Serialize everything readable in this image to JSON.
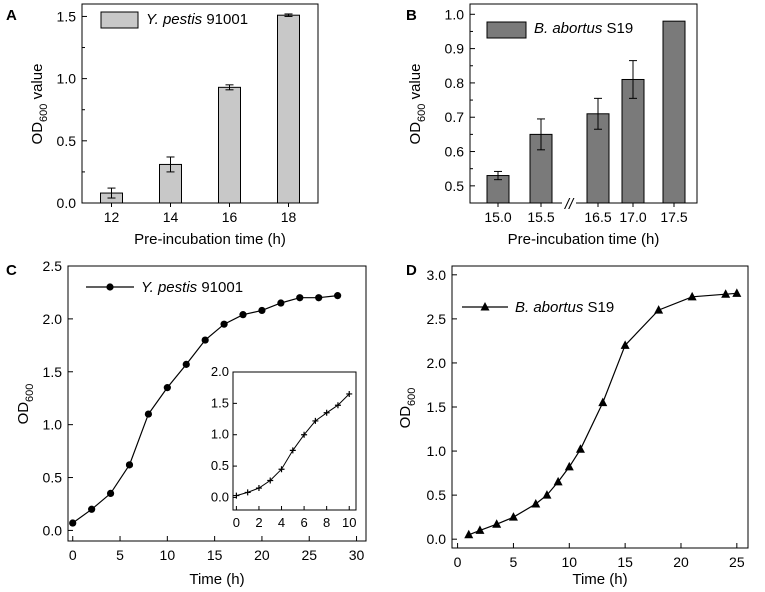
{
  "chart_data": [
    {
      "panel": "A",
      "type": "bar",
      "series_name": "Y. pestis",
      "series_strain": "91001",
      "categories": [
        "12",
        "14",
        "16",
        "18"
      ],
      "values": [
        0.08,
        0.31,
        0.93,
        1.51
      ],
      "errors": [
        0.04,
        0.06,
        0.02,
        0.01
      ],
      "color": "#c8c8c8",
      "xlabel": "Pre-incubation time (h)",
      "ylabel_main": "OD",
      "ylabel_sub": "600",
      "ylabel_suffix": " value",
      "ylim": [
        0,
        1.6
      ],
      "yticks": [
        "0.0",
        "0.5",
        "1.0",
        "1.5"
      ]
    },
    {
      "panel": "B",
      "type": "bar",
      "series_name": "B. abortus",
      "series_strain": "S19",
      "categories": [
        "15.0",
        "15.5",
        "16.5",
        "17.0",
        "17.5"
      ],
      "values": [
        0.53,
        0.65,
        0.71,
        0.81,
        0.98
      ],
      "errors": [
        0.012,
        0.045,
        0.045,
        0.055,
        0.0
      ],
      "axis_break_between": [
        "15.5",
        "16.5"
      ],
      "break_mark": "//",
      "color": "#7a7a7a",
      "xlabel": "Pre-incubation time (h)",
      "ylabel_main": "OD",
      "ylabel_sub": "600",
      "ylabel_suffix": " value",
      "ylim": [
        0.45,
        1.03
      ],
      "yticks": [
        "0.5",
        "0.6",
        "0.7",
        "0.8",
        "0.9",
        "1.0"
      ]
    },
    {
      "panel": "C",
      "type": "line",
      "series_name": "Y. pestis",
      "series_strain": "91001",
      "marker": "circle",
      "x": [
        0,
        2,
        4,
        6,
        8,
        10,
        12,
        14,
        16,
        18,
        20,
        22,
        24,
        26,
        28
      ],
      "y": [
        0.07,
        0.2,
        0.35,
        0.62,
        1.1,
        1.35,
        1.57,
        1.8,
        1.95,
        2.04,
        2.08,
        2.15,
        2.2,
        2.2,
        2.22
      ],
      "xlabel": "Time (h)",
      "ylabel_main": "OD",
      "ylabel_sub": "600",
      "xlim": [
        -0.5,
        31
      ],
      "ylim": [
        -0.1,
        2.5
      ],
      "xticks": [
        "0",
        "5",
        "10",
        "15",
        "20",
        "25",
        "30"
      ],
      "yticks": [
        "0.0",
        "0.5",
        "1.0",
        "1.5",
        "2.0",
        "2.5"
      ],
      "inset": {
        "type": "line",
        "marker": "cross",
        "x": [
          0,
          1,
          2,
          3,
          4,
          5,
          6,
          7,
          8,
          9,
          10
        ],
        "y": [
          0.03,
          0.08,
          0.15,
          0.27,
          0.45,
          0.75,
          1.0,
          1.22,
          1.35,
          1.47,
          1.65
        ],
        "xlim": [
          -0.3,
          10.6
        ],
        "ylim": [
          -0.2,
          2.0
        ],
        "xticks": [
          "0",
          "2",
          "4",
          "6",
          "8",
          "10"
        ],
        "yticks": [
          "0.0",
          "0.5",
          "1.0",
          "1.5",
          "2.0"
        ]
      }
    },
    {
      "panel": "D",
      "type": "line",
      "series_name": "B. abortus",
      "series_strain": "S19",
      "marker": "triangle",
      "x": [
        1,
        2,
        3.5,
        5,
        7,
        8,
        9,
        10,
        11,
        13,
        15,
        18,
        21,
        24,
        25
      ],
      "y": [
        0.05,
        0.1,
        0.17,
        0.25,
        0.4,
        0.5,
        0.65,
        0.82,
        1.02,
        1.55,
        2.2,
        2.6,
        2.75,
        2.78,
        2.79
      ],
      "xlabel": "Time (h)",
      "ylabel_main": "OD",
      "ylabel_sub": "600",
      "xlim": [
        -0.5,
        26
      ],
      "ylim": [
        -0.1,
        3.1
      ],
      "xticks": [
        "0",
        "5",
        "10",
        "15",
        "20",
        "25"
      ],
      "yticks": [
        "0.0",
        "0.5",
        "1.0",
        "1.5",
        "2.0",
        "2.5",
        "3.0"
      ]
    }
  ]
}
